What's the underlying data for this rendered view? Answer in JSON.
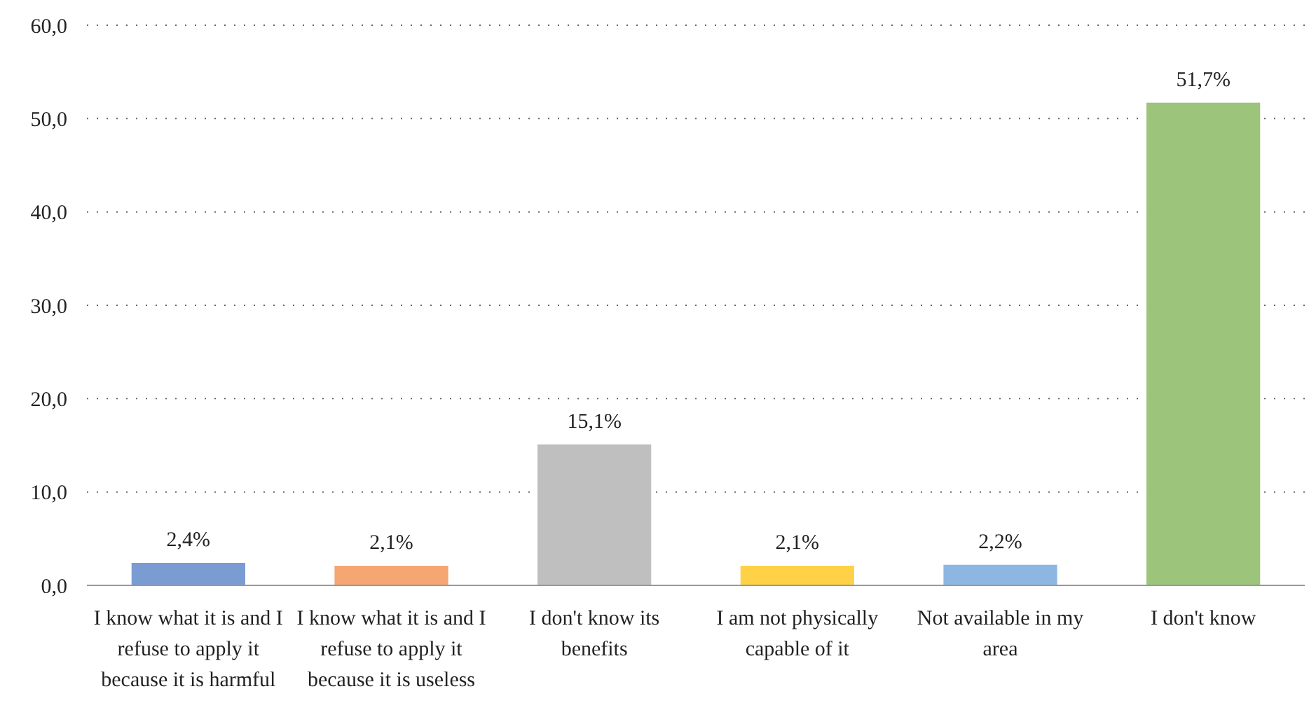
{
  "chart_data": {
    "type": "bar",
    "categories": [
      "I know what it is and I refuse to apply it because it is harmful",
      "I know what it is and I refuse to apply it because it is useless",
      "I don't know its benefits",
      "I am not physically capable of it",
      "Not available in my area",
      "I don't know"
    ],
    "values": [
      2.4,
      2.1,
      15.1,
      2.1,
      2.2,
      51.7
    ],
    "colors": [
      "#7b9bd3",
      "#f5a673",
      "#bfbfbf",
      "#ffd146",
      "#8db6e2",
      "#9cc47b"
    ],
    "value_labels": [
      "2,4%",
      "2,1%",
      "15,1%",
      "2,1%",
      "2,2%",
      "51,7%"
    ],
    "ylim": [
      0,
      60
    ],
    "yticks": [
      {
        "value": 0,
        "label": "0,0"
      },
      {
        "value": 10,
        "label": "10,0"
      },
      {
        "value": 20,
        "label": "20,0"
      },
      {
        "value": 30,
        "label": "30,0"
      },
      {
        "value": 40,
        "label": "40,0"
      },
      {
        "value": 50,
        "label": "50,0"
      },
      {
        "value": 60,
        "label": "60,0"
      }
    ],
    "grid": "y"
  }
}
